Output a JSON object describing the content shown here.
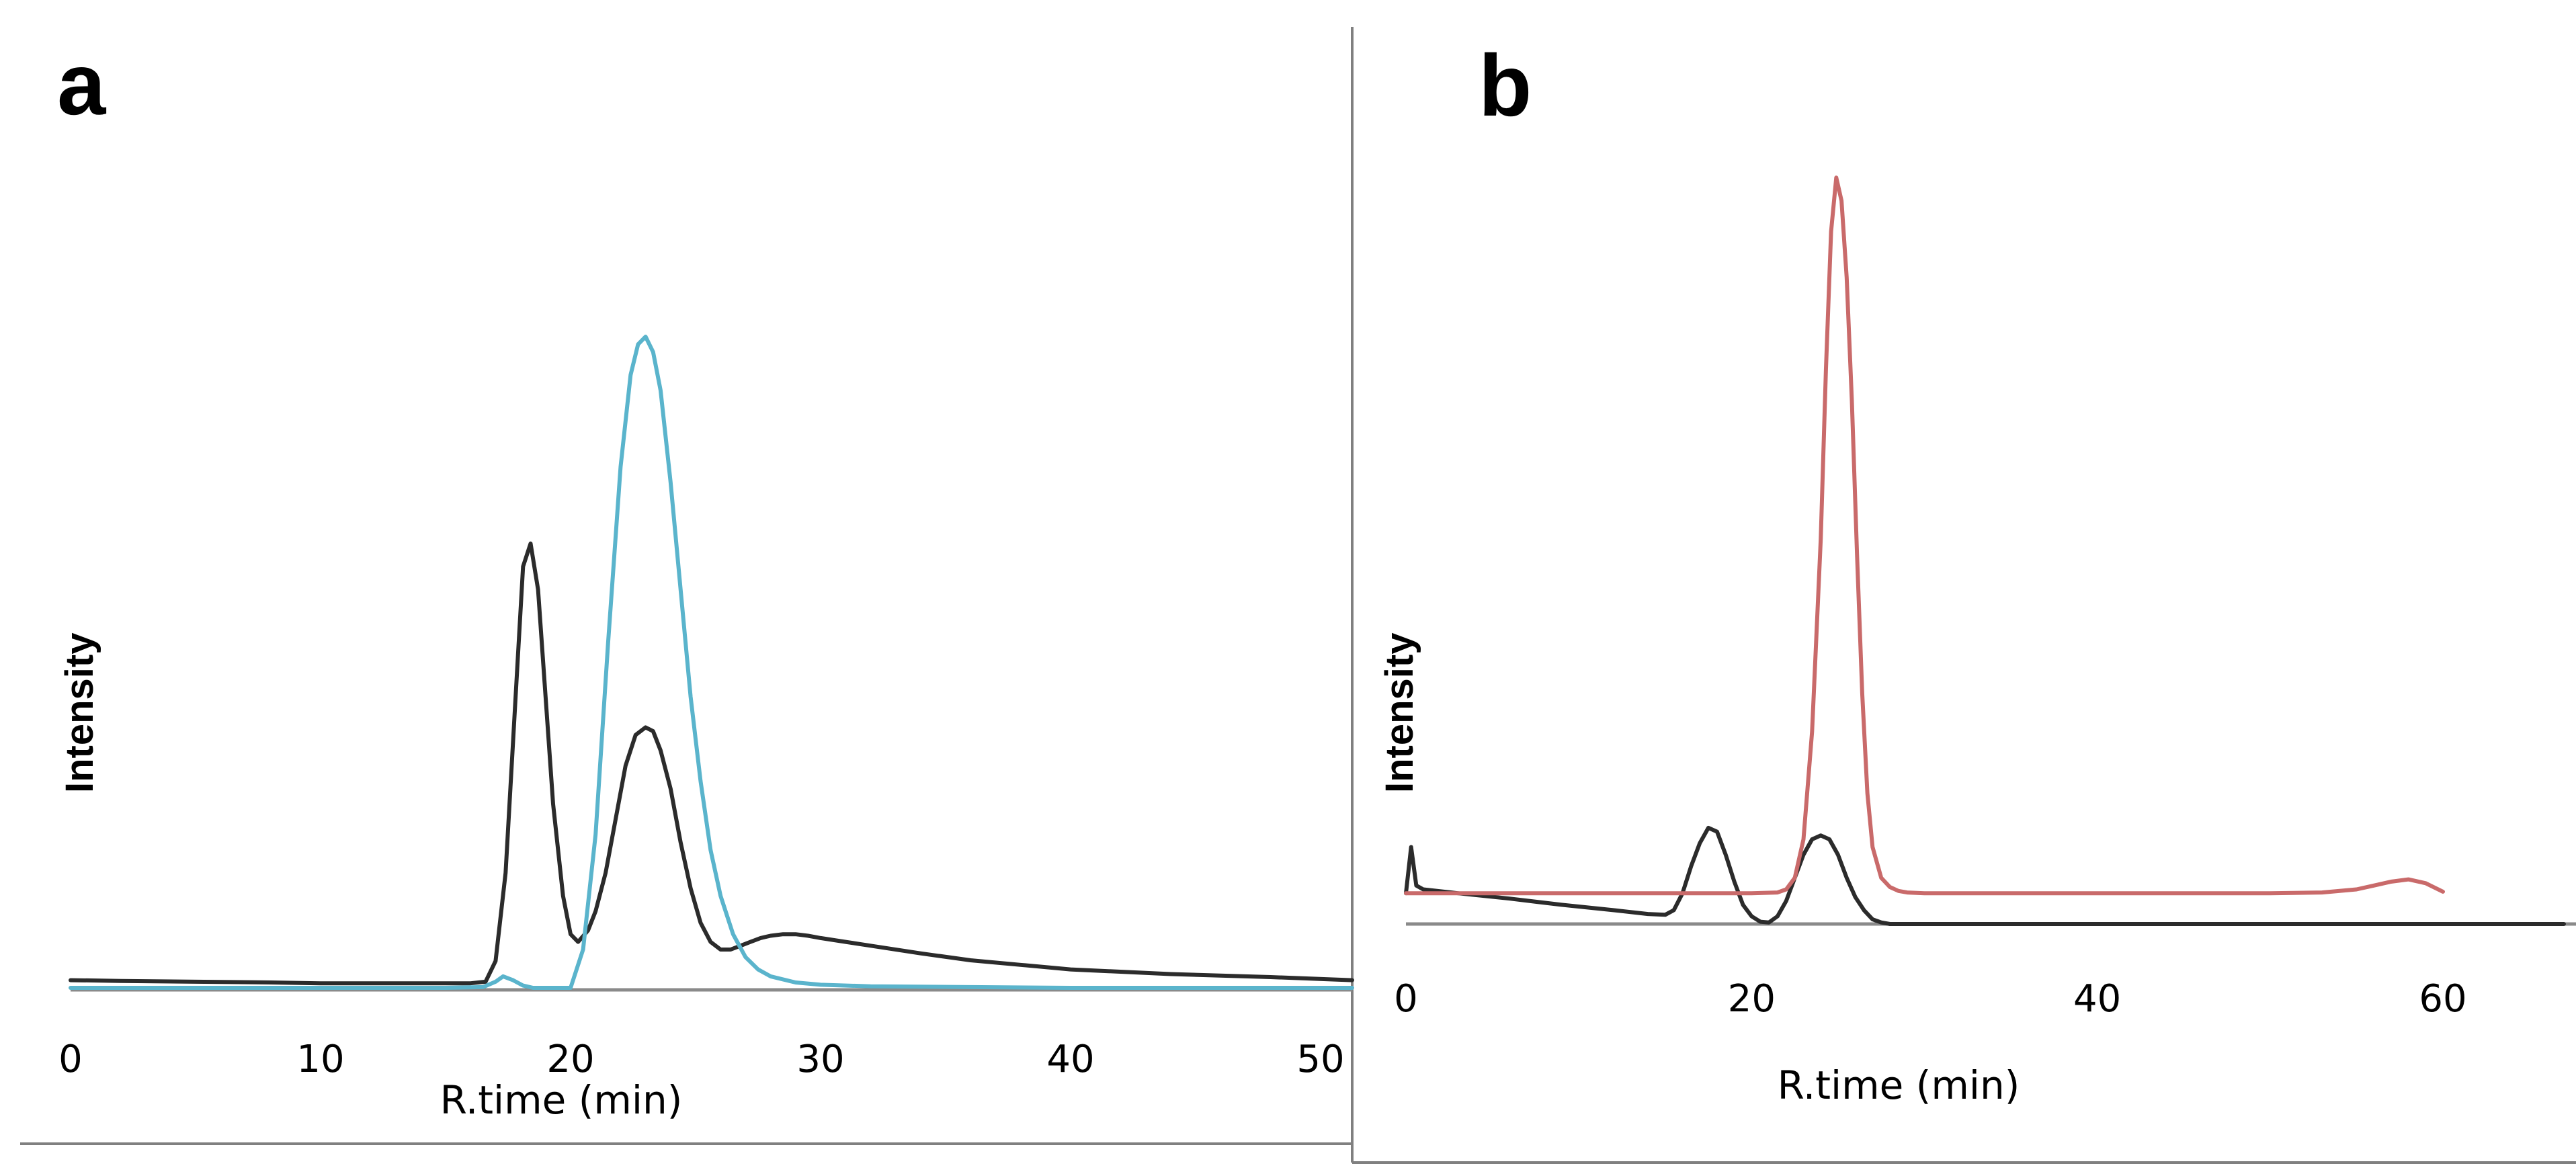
{
  "chart_data": [
    {
      "type": "line",
      "panel": "a",
      "title": "",
      "xlabel": "R.time (min)",
      "ylabel": "Intensity",
      "xlim": [
        0,
        52
      ],
      "ylim": [
        0,
        100
      ],
      "x_ticks": [
        0,
        10,
        20,
        30,
        40,
        50
      ],
      "tick_labels": [
        "0",
        "10",
        "20",
        "30",
        "40",
        "50"
      ],
      "grid": false,
      "series": [
        {
          "name": "black",
          "color": "#2b2b2b",
          "x": [
            0,
            2,
            5,
            8,
            10,
            12,
            14,
            15,
            16,
            16.6,
            17.0,
            17.4,
            17.8,
            18.1,
            18.4,
            18.7,
            19.0,
            19.3,
            19.7,
            20.0,
            20.3,
            20.7,
            21.0,
            21.4,
            21.8,
            22.2,
            22.6,
            23.0,
            23.3,
            23.6,
            24.0,
            24.4,
            24.8,
            25.2,
            25.6,
            26.0,
            26.4,
            26.8,
            27.2,
            27.6,
            28.0,
            28.5,
            29.0,
            29.5,
            30.0,
            31.0,
            32.0,
            34.0,
            36.0,
            38.0,
            40.0,
            44.0,
            48.0,
            52.0
          ],
          "y": [
            1.0,
            0.9,
            0.8,
            0.7,
            0.6,
            0.6,
            0.6,
            0.6,
            0.6,
            0.8,
            3.5,
            15,
            38,
            55,
            58,
            52,
            38,
            24,
            12,
            7,
            6,
            7.5,
            10,
            15,
            22,
            29,
            33,
            34,
            33.5,
            31,
            26,
            19,
            13,
            8.5,
            6.0,
            5.0,
            5.0,
            5.5,
            6.0,
            6.5,
            6.8,
            7.0,
            7.0,
            6.8,
            6.5,
            6.0,
            5.5,
            4.5,
            3.6,
            3.0,
            2.4,
            1.8,
            1.4,
            1.0
          ]
        },
        {
          "name": "cyan",
          "color": "#5ab4cc",
          "x": [
            0,
            5,
            10,
            15,
            16.5,
            17.0,
            17.3,
            17.7,
            18.1,
            18.5,
            19.0,
            19.5,
            20.0,
            20.5,
            21.0,
            21.5,
            22.0,
            22.4,
            22.7,
            23.0,
            23.3,
            23.6,
            24.0,
            24.4,
            24.8,
            25.2,
            25.6,
            26.0,
            26.5,
            27.0,
            27.5,
            28.0,
            29.0,
            30.0,
            32.0,
            36.0,
            40.0,
            52.0
          ],
          "y": [
            0,
            0,
            0,
            0,
            0.1,
            0.8,
            1.5,
            1.0,
            0.3,
            0,
            0,
            0,
            0,
            5,
            20,
            45,
            68,
            80,
            84,
            85,
            83,
            78,
            66,
            52,
            38,
            27,
            18,
            12,
            7,
            4,
            2.4,
            1.5,
            0.7,
            0.4,
            0.2,
            0.1,
            0,
            0
          ]
        }
      ]
    },
    {
      "type": "line",
      "panel": "b",
      "title": "",
      "xlabel": "R.time (min)",
      "ylabel": "Intensity",
      "xlim": [
        0,
        67
      ],
      "ylim": [
        0,
        100
      ],
      "x_ticks": [
        0,
        20,
        40,
        60
      ],
      "tick_labels": [
        "0",
        "20",
        "40",
        "60"
      ],
      "grid": false,
      "series": [
        {
          "name": "black",
          "color": "#2b2b2b",
          "x": [
            0,
            0.3,
            0.6,
            1.0,
            3,
            6,
            9,
            12,
            14,
            15,
            15.5,
            16.0,
            16.5,
            17.0,
            17.5,
            18.0,
            18.5,
            19.0,
            19.5,
            20.0,
            20.5,
            21.0,
            21.5,
            22.0,
            22.5,
            23.0,
            23.5,
            24.0,
            24.5,
            25.0,
            25.5,
            26.0,
            26.5,
            27.0,
            27.5,
            28.0,
            30.0,
            40.0,
            50.0,
            60.0,
            67.0
          ],
          "y": [
            4.0,
            10.0,
            5.0,
            4.5,
            4.0,
            3.3,
            2.5,
            1.8,
            1.3,
            1.2,
            1.8,
            4.0,
            7.5,
            10.5,
            12.5,
            12.0,
            9.0,
            5.5,
            2.5,
            1.0,
            0.3,
            0.2,
            1.0,
            3.0,
            6.0,
            9.0,
            11.0,
            11.5,
            11.0,
            9.0,
            6.0,
            3.5,
            1.8,
            0.6,
            0.2,
            0,
            0,
            0,
            0,
            0,
            0
          ]
        },
        {
          "name": "red",
          "color": "#c96a6a",
          "x": [
            0,
            5,
            10,
            15,
            20,
            21.5,
            22.0,
            22.5,
            23.0,
            23.5,
            24.0,
            24.3,
            24.6,
            24.9,
            25.2,
            25.5,
            25.8,
            26.1,
            26.4,
            26.7,
            27.0,
            27.5,
            28.0,
            28.5,
            29.0,
            30.0,
            35,
            40,
            45,
            50,
            53,
            55,
            56,
            57,
            58,
            59,
            60
          ],
          "y": [
            4.0,
            4.0,
            4.0,
            4.0,
            4.0,
            4.1,
            4.5,
            6,
            11,
            25,
            50,
            72,
            90,
            97,
            94,
            84,
            68,
            48,
            30,
            17,
            10,
            6,
            4.8,
            4.3,
            4.1,
            4.0,
            4.0,
            4.0,
            4.0,
            4.0,
            4.1,
            4.5,
            5.0,
            5.5,
            5.8,
            5.3,
            4.2
          ]
        }
      ]
    }
  ],
  "panels": {
    "a": {
      "letter": "a",
      "ylabel": "Intensity",
      "xlabel": "R.time (min)"
    },
    "b": {
      "letter": "b",
      "ylabel": "Intensity",
      "xlabel": "R.time (min)"
    }
  }
}
